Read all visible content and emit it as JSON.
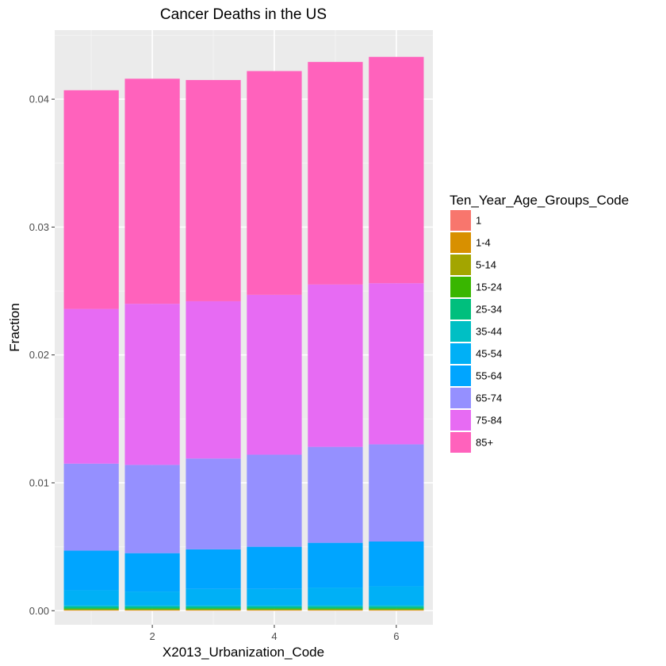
{
  "chart_data": {
    "type": "bar",
    "stacked": true,
    "title": "Cancer Deaths in the US",
    "xlabel": "X2013_Urbanization_Code",
    "ylabel": "Fraction",
    "categories": [
      1,
      2,
      3,
      4,
      5,
      6
    ],
    "x_ticks": [
      2,
      4,
      6
    ],
    "xlim": [
      0.4,
      6.6
    ],
    "y_ticks": [
      0.0,
      0.01,
      0.02,
      0.03,
      0.04
    ],
    "y_tick_labels": [
      "0.00",
      "0.01",
      "0.02",
      "0.03",
      "0.04"
    ],
    "ylim": [
      -0.0011,
      0.0454
    ],
    "grid": true,
    "legend": {
      "title": "Ten_Year_Age_Groups_Code",
      "position": "right"
    },
    "series": [
      {
        "name": "1",
        "color": "#F8766D",
        "values": [
          2e-05,
          2e-05,
          2e-05,
          2e-05,
          2e-05,
          2e-05
        ]
      },
      {
        "name": "1-4",
        "color": "#D89000",
        "values": [
          3e-05,
          3e-05,
          3e-05,
          3e-05,
          3e-05,
          3e-05
        ]
      },
      {
        "name": "5-14",
        "color": "#A3A500",
        "values": [
          5e-05,
          5e-05,
          5e-05,
          5e-05,
          5e-05,
          5e-05
        ]
      },
      {
        "name": "15-24",
        "color": "#39B600",
        "values": [
          8e-05,
          8e-05,
          8e-05,
          8e-05,
          8e-05,
          8e-05
        ]
      },
      {
        "name": "25-34",
        "color": "#00BF7D",
        "values": [
          0.00012,
          0.00012,
          0.00012,
          0.00012,
          0.00013,
          0.00013
        ]
      },
      {
        "name": "35-44",
        "color": "#00BFC4",
        "values": [
          0.0001,
          0.0001,
          0.0001,
          0.0001,
          0.0001,
          0.0001
        ]
      },
      {
        "name": "45-54",
        "color": "#00B0F6",
        "values": [
          0.0012,
          0.0011,
          0.0013,
          0.0013,
          0.0014,
          0.0015
        ]
      },
      {
        "name": "55-64",
        "color": "#00A5FF",
        "values": [
          0.0031,
          0.003,
          0.0031,
          0.0033,
          0.0035,
          0.0035
        ]
      },
      {
        "name": "65-74",
        "color": "#9590FF",
        "values": [
          0.0068,
          0.0069,
          0.0071,
          0.0072,
          0.0075,
          0.0076
        ]
      },
      {
        "name": "75-84",
        "color": "#E76BF3",
        "values": [
          0.0121,
          0.0126,
          0.0123,
          0.0125,
          0.0127,
          0.0126
        ]
      },
      {
        "name": "85+",
        "color": "#FF62BC",
        "values": [
          0.0171,
          0.0176,
          0.0173,
          0.0175,
          0.0174,
          0.0177
        ]
      }
    ]
  }
}
